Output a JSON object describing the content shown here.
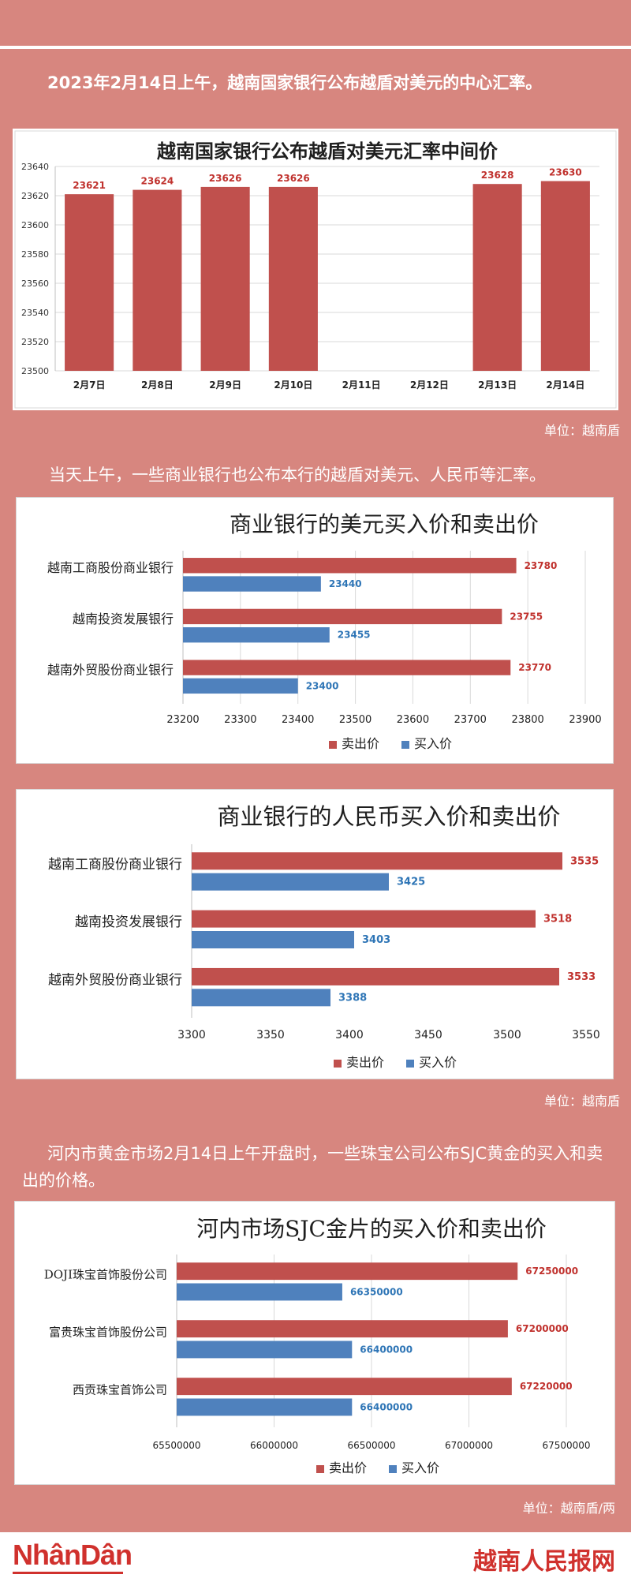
{
  "texts": {
    "intro1": "2023年2月14日上午，越南国家银行公布越盾对美元的中心汇率。",
    "unit1": "单位：越南盾",
    "intro2": "当天上午，一些商业银行也公布本行的越盾对美元、人民币等汇率。",
    "unit2": "单位：越南盾",
    "intro3": "河内市黄金市场2月14日上午开盘时，一些珠宝公司公布SJC黄金的买入和卖出的价格。",
    "unit3": "单位：越南盾/两"
  },
  "footer": {
    "logo": "NhânDân",
    "brand": "越南人民报网"
  },
  "colors": {
    "sell": "#c0504d",
    "buy": "#4f81bd",
    "sell_label": "#c0312d",
    "buy_label": "#2e75b6"
  },
  "chart_data": [
    {
      "type": "bar",
      "title": "越南国家银行公布越盾对美元汇率中间价",
      "categories": [
        "2月7日",
        "2月8日",
        "2月9日",
        "2月10日",
        "2月11日",
        "2月12日",
        "2月13日",
        "2月14日"
      ],
      "values": [
        23621,
        23624,
        23626,
        23626,
        null,
        null,
        23628,
        23630
      ],
      "ylim": [
        23500,
        23640
      ],
      "yticks": [
        23500,
        23520,
        23540,
        23560,
        23580,
        23600,
        23620,
        23640
      ],
      "grid": true
    },
    {
      "type": "bar",
      "orientation": "horizontal",
      "title": "商业银行的美元买入价和卖出价",
      "categories": [
        "越南工商股份商业银行",
        "越南投资发展银行",
        "越南外贸股份商业银行"
      ],
      "series": [
        {
          "name": "卖出价",
          "values": [
            23780,
            23755,
            23770
          ]
        },
        {
          "name": "买入价",
          "values": [
            23440,
            23455,
            23400
          ]
        }
      ],
      "xlim": [
        23200,
        23900
      ],
      "xticks": [
        23200,
        23300,
        23400,
        23500,
        23600,
        23700,
        23800,
        23900
      ],
      "legend": "bottom",
      "grid": true
    },
    {
      "type": "bar",
      "orientation": "horizontal",
      "title": "商业银行的人民币买入价和卖出价",
      "categories": [
        "越南工商股份商业银行",
        "越南投资发展银行",
        "越南外贸股份商业银行"
      ],
      "series": [
        {
          "name": "卖出价",
          "values": [
            3535,
            3518,
            3533
          ]
        },
        {
          "name": "买入价",
          "values": [
            3425,
            3403,
            3388
          ]
        }
      ],
      "xlim": [
        3300,
        3550
      ],
      "xticks": [
        3300,
        3350,
        3400,
        3450,
        3500,
        3550
      ],
      "legend": "bottom",
      "grid": false
    },
    {
      "type": "bar",
      "orientation": "horizontal",
      "title": "河内市场SJC金片的买入价和卖出价",
      "categories": [
        "DOJI珠宝首饰股份公司",
        "富贵珠宝首饰股份公司",
        "西贡珠宝首饰公司"
      ],
      "series": [
        {
          "name": "卖出价",
          "values": [
            67250000,
            67200000,
            67220000
          ]
        },
        {
          "name": "买入价",
          "values": [
            66350000,
            66400000,
            66400000
          ]
        }
      ],
      "xlim": [
        65500000,
        67500000
      ],
      "xticks": [
        65500000,
        66000000,
        66500000,
        67000000,
        67500000
      ],
      "legend": "bottom",
      "grid": true
    }
  ]
}
